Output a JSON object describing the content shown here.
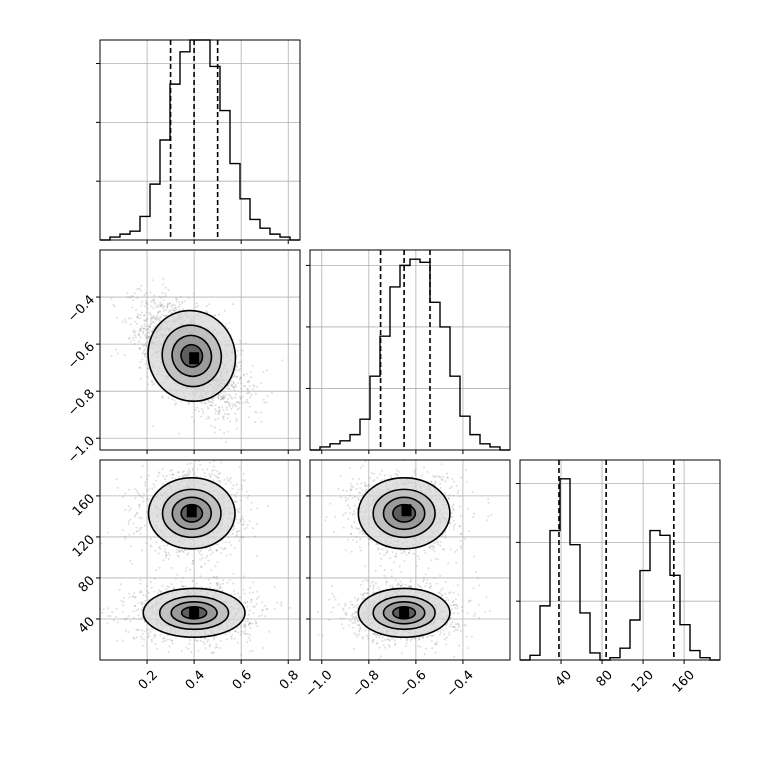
{
  "chart_data": {
    "type": "corner",
    "grid": true,
    "parameters": [
      {
        "range": [
          0.0,
          0.85
        ],
        "ticks": [
          0.2,
          0.4,
          0.6,
          0.8
        ],
        "tick_labels": [
          "0.2",
          "0.4",
          "0.6",
          "0.8"
        ],
        "quantiles": [
          0.3,
          0.4,
          0.5
        ],
        "hist_ymax": 68,
        "hist_ticks": [
          20,
          40,
          60
        ],
        "hist": [
          0,
          1,
          2,
          3,
          8,
          19,
          34,
          53,
          64,
          68,
          68,
          59,
          44,
          26,
          14,
          7,
          4,
          2,
          1,
          0
        ]
      },
      {
        "range": [
          -1.05,
          -0.2
        ],
        "ticks": [
          -1.0,
          -0.8,
          -0.6,
          -0.4
        ],
        "tick_labels": [
          "−1.0",
          "−0.8",
          "−0.6",
          "−0.4"
        ],
        "quantiles": [
          -0.75,
          -0.65,
          -0.54
        ],
        "hist_ymax": 65,
        "hist_ticks": [
          20,
          40,
          60
        ],
        "hist": [
          0,
          1,
          2,
          3,
          5,
          10,
          24,
          37,
          53,
          60,
          62,
          61,
          48,
          40,
          24,
          11,
          5,
          2,
          1,
          0
        ]
      },
      {
        "range": [
          0,
          195
        ],
        "ticks": [
          40,
          80,
          120,
          160
        ],
        "tick_labels": [
          "40",
          "80",
          "120",
          "160"
        ],
        "quantiles": [
          38,
          84,
          150
        ],
        "hist_ymax": 85,
        "hist_ticks": [
          25,
          50,
          75
        ],
        "hist": [
          0,
          2,
          23,
          55,
          77,
          49,
          20,
          3,
          0,
          1,
          5,
          17,
          38,
          55,
          53,
          36,
          15,
          4,
          1,
          0
        ]
      }
    ],
    "pairs": [
      {
        "row": 1,
        "col": 0,
        "blobs": [
          {
            "center": [
              0.39,
              -0.65
            ],
            "sigma": [
              0.085,
              0.09
            ],
            "corr": -0.55,
            "peak": [
              0.4,
              -0.66
            ]
          }
        ]
      },
      {
        "row": 2,
        "col": 0,
        "blobs": [
          {
            "center": [
              0.39,
              143
            ],
            "sigma": [
              0.085,
              16
            ],
            "corr": 0.0,
            "peak": [
              0.39,
              145
            ]
          },
          {
            "center": [
              0.4,
              46
            ],
            "sigma": [
              0.1,
              11
            ],
            "corr": 0.0,
            "peak": [
              0.4,
              46
            ]
          }
        ]
      },
      {
        "row": 2,
        "col": 1,
        "blobs": [
          {
            "center": [
              -0.65,
              143
            ],
            "sigma": [
              0.09,
              16
            ],
            "corr": 0.0,
            "peak": [
              -0.64,
              146
            ]
          },
          {
            "center": [
              -0.65,
              46
            ],
            "sigma": [
              0.09,
              11
            ],
            "corr": 0.0,
            "peak": [
              -0.65,
              46
            ]
          }
        ]
      }
    ],
    "contour_levels": [
      0.12,
      0.38,
      0.65,
      0.88
    ]
  }
}
